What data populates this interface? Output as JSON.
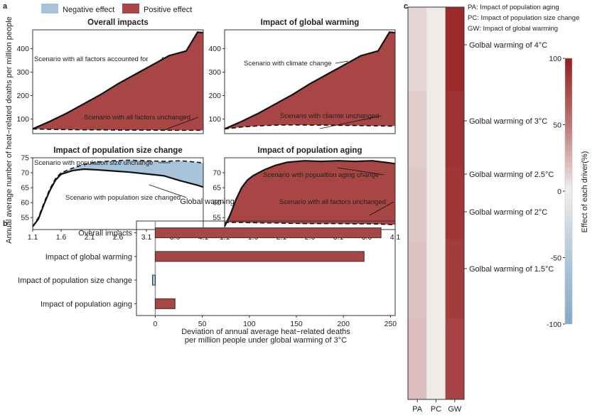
{
  "colors": {
    "positive": "#a84545",
    "negative": "#a8c4da",
    "line": "#111111",
    "frame": "#333333"
  },
  "panel_a": {
    "label": "a",
    "legend": {
      "negative": "Negative effect",
      "positive": "Positive effect"
    },
    "ylabel": "Annual average number of heat−related deaths per million people",
    "xlabel": "Global warming (°C)",
    "xticks": [
      "1.1",
      "1.6",
      "2.1",
      "2.6",
      "3.1",
      "3.6",
      "4.1"
    ]
  },
  "panel_b": {
    "label": "b"
  },
  "panel_c": {
    "label": "c"
  },
  "chart_data": [
    {
      "type": "area",
      "title": "Overall impacts",
      "xlim": [
        1.1,
        4.1
      ],
      "ylim": [
        38,
        480
      ],
      "yticks": [
        100,
        200,
        300,
        400
      ],
      "x": [
        1.1,
        1.4,
        1.7,
        2.0,
        2.3,
        2.6,
        2.9,
        3.2,
        3.5,
        3.8,
        4.0,
        4.1
      ],
      "series": [
        {
          "values": [
            58,
            90,
            125,
            165,
            205,
            250,
            290,
            330,
            370,
            390,
            470,
            468
          ]
        },
        {
          "values": [
            58,
            56,
            55,
            54,
            54,
            53,
            53,
            53,
            52,
            52,
            52,
            52
          ]
        }
      ],
      "annotations": [
        "Scenario with all factors accounted for",
        "Scenario with all factors unchanged"
      ]
    },
    {
      "type": "area",
      "title": "Impact of global warming",
      "xlim": [
        1.1,
        4.1
      ],
      "ylim": [
        38,
        480
      ],
      "yticks": [
        100,
        200,
        300,
        400
      ],
      "x": [
        1.1,
        1.4,
        1.7,
        2.0,
        2.3,
        2.6,
        2.9,
        3.2,
        3.5,
        3.8,
        4.0,
        4.1
      ],
      "series": [
        {
          "values": [
            58,
            90,
            125,
            165,
            205,
            250,
            290,
            330,
            370,
            390,
            470,
            468
          ]
        },
        {
          "values": [
            58,
            66,
            71,
            74,
            75,
            74,
            74,
            73,
            72,
            71,
            70,
            70
          ]
        }
      ],
      "annotations": [
        "Scenario with climate change",
        "Scenario with cliamte unchanged"
      ]
    },
    {
      "type": "area",
      "title": "Impact of population size change",
      "xlim": [
        1.1,
        4.1
      ],
      "ylim": [
        51,
        75
      ],
      "yticks": [
        55,
        60,
        65,
        70,
        75
      ],
      "x": [
        1.1,
        1.2,
        1.3,
        1.4,
        1.5,
        1.6,
        1.8,
        2.0,
        2.2,
        2.5,
        2.8,
        3.1,
        3.4,
        3.7,
        4.0,
        4.1
      ],
      "series": [
        {
          "values": [
            52,
            55,
            60,
            64.5,
            68,
            70,
            71.5,
            72.8,
            73.5,
            74,
            74.2,
            74,
            73.8,
            74,
            73.5,
            73.2
          ]
        },
        {
          "values": [
            52,
            54.5,
            59.5,
            64,
            67.5,
            69.5,
            70.7,
            71.2,
            71.0,
            70.6,
            70.2,
            69.6,
            69.0,
            67.3,
            65.8,
            65.2
          ]
        }
      ],
      "annotations": [
        "Scenario with population size unchange",
        "Scenario with population size changed"
      ]
    },
    {
      "type": "area",
      "title": "Impact of population aging",
      "xlim": [
        1.1,
        4.1
      ],
      "ylim": [
        51,
        75
      ],
      "yticks": [
        55,
        60,
        65,
        70
      ],
      "x": [
        1.1,
        1.2,
        1.3,
        1.4,
        1.5,
        1.6,
        1.8,
        2.0,
        2.2,
        2.5,
        2.8,
        3.1,
        3.4,
        3.7,
        4.0,
        4.1
      ],
      "series": [
        {
          "values": [
            52,
            56,
            61,
            65,
            67.5,
            69,
            71,
            72.5,
            73.5,
            74,
            73.8,
            74,
            73.8,
            74,
            73.3,
            73.0
          ]
        },
        {
          "values": [
            53.3,
            53.4,
            53.4,
            53.4,
            53.3,
            53.3,
            53.2,
            53.2,
            53.1,
            53.0,
            53.0,
            53.0,
            52.9,
            52.9,
            52.7,
            52.6
          ]
        }
      ],
      "annotations": [
        "Scenario with popualtion aging change",
        "Scenario with all factors unchanged"
      ]
    },
    {
      "type": "bar",
      "orientation": "horizontal",
      "categories": [
        "Overall impacts",
        "Impact of global warming",
        "Impact of population size change",
        "Impact of population aging"
      ],
      "values": [
        240,
        222,
        -3,
        21
      ],
      "xlim": [
        -20,
        255
      ],
      "xticks": [
        0,
        50,
        100,
        150,
        200,
        250
      ],
      "xlabel": "Deviation of annual average heat−related deaths\nper million people under global warming of 3°C"
    },
    {
      "type": "heatmap",
      "columns": [
        "PA",
        "PC",
        "GW"
      ],
      "rows": [
        "Golbal warming of 1.5°C",
        "Golbal warming of 2°C",
        "Golbal warming of 2.5°C",
        "Golbal warming of 3°C",
        "Golbal warming of 4°C"
      ],
      "values": [
        [
          17,
          1,
          78
        ],
        [
          15,
          1,
          82
        ],
        [
          12,
          1,
          86
        ],
        [
          10,
          1,
          89
        ],
        [
          7,
          1,
          93
        ]
      ],
      "colorbar": {
        "label": "Effect of each driver(%)",
        "range": [
          -100,
          100
        ],
        "ticks": [
          100,
          50,
          0,
          -50,
          -100
        ]
      },
      "legend": [
        "PA: Impact of population aging",
        "PC: Impact of population size change",
        "GW: Impact of global warming"
      ]
    }
  ]
}
